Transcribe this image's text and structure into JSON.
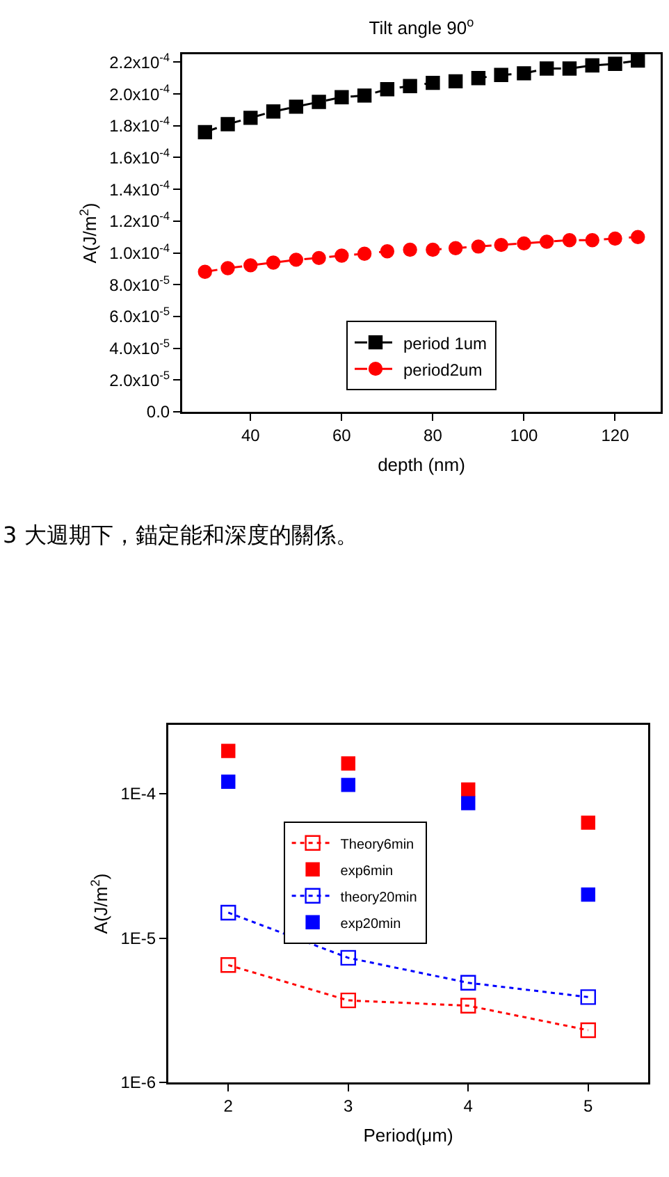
{
  "chart_data": [
    {
      "type": "line",
      "title": "Tilt angle 90$^{o}$",
      "xlabel": "depth (nm)",
      "ylabel": "A(J/m$^{2}$)",
      "x": [
        30,
        35,
        40,
        45,
        50,
        55,
        60,
        65,
        70,
        75,
        80,
        85,
        90,
        95,
        100,
        105,
        110,
        115,
        120,
        125
      ],
      "series": [
        {
          "name": "period 1um",
          "color": "#000000",
          "marker": "square",
          "values": [
            0.000176,
            0.000181,
            0.000185,
            0.000189,
            0.000192,
            0.000195,
            0.000198,
            0.000199,
            0.000203,
            0.000205,
            0.000207,
            0.000208,
            0.00021,
            0.000212,
            0.000213,
            0.000216,
            0.000216,
            0.000218,
            0.000219,
            0.000221
          ]
        },
        {
          "name": "period2um",
          "color": "#ff0000",
          "marker": "circle",
          "values": [
            8.81e-05,
            9.04e-05,
            9.22e-05,
            9.39e-05,
            9.57e-05,
            9.68e-05,
            9.83e-05,
            9.95e-05,
            0.000101,
            0.000102,
            0.000102,
            0.000103,
            0.000104,
            0.000105,
            0.000106,
            0.000107,
            0.000108,
            0.000108,
            0.000109,
            0.00011
          ]
        }
      ],
      "xlim": [
        25,
        130
      ],
      "xticks": [
        40,
        60,
        80,
        100,
        120
      ],
      "ylim": [
        0,
        0.000225
      ],
      "yticks": [
        {
          "value": 0,
          "label": "0.0"
        },
        {
          "value": 2e-05,
          "label": "2.0x10$^{-5}$"
        },
        {
          "value": 4e-05,
          "label": "4.0x10$^{-5}$"
        },
        {
          "value": 6e-05,
          "label": "6.0x10$^{-5}$"
        },
        {
          "value": 8e-05,
          "label": "8.0x10$^{-5}$"
        },
        {
          "value": 0.0001,
          "label": "1.0x10$^{-4}$"
        },
        {
          "value": 0.00012,
          "label": "1.2x10$^{-4}$"
        },
        {
          "value": 0.00014,
          "label": "1.4x10$^{-4}$"
        },
        {
          "value": 0.00016,
          "label": "1.6x10$^{-4}$"
        },
        {
          "value": 0.00018,
          "label": "1.8x10$^{-4}$"
        },
        {
          "value": 0.0002,
          "label": "2.0x10$^{-4}$"
        },
        {
          "value": 0.00022,
          "label": "2.2x10$^{-4}$"
        }
      ],
      "grid": false,
      "legend": "bottom",
      "line_style": "dashed",
      "annotations": [
        "3 大週期下，錨定能和深度的關係。"
      ]
    },
    {
      "type": "scatter",
      "xlabel": "Period(μm)",
      "ylabel": "A(J/m$^{2}$)",
      "x": [
        2,
        3,
        4,
        5
      ],
      "series": [
        {
          "name": "Theory6min",
          "type": "line",
          "color": "#ff0000",
          "marker": "square",
          "line_style": "dotted",
          "values": [
            6.5e-06,
            3.7e-06,
            3.4e-06,
            2.3e-06
          ]
        },
        {
          "name": "exp6min",
          "type": "scatter",
          "color": "#ff0000",
          "marker": "square",
          "values": [
            0.000198,
            0.000162,
            0.000107,
            6.3e-05
          ]
        },
        {
          "name": "theory20min",
          "type": "line",
          "color": "#0000ff",
          "marker": "square",
          "line_style": "dotted",
          "values": [
            1.5e-05,
            7.3e-06,
            4.9e-06,
            3.9e-06
          ]
        },
        {
          "name": "exp20min",
          "type": "scatter",
          "color": "#0000ff",
          "marker": "square",
          "values": [
            0.000121,
            0.000115,
            8.6e-05,
            2e-05
          ]
        }
      ],
      "xlim": [
        1.5,
        5.5
      ],
      "xticks": [
        2,
        3,
        4,
        5
      ],
      "log": true,
      "ylim": [
        1e-06,
        0.0003
      ],
      "yticks": [
        {
          "value": 1e-06,
          "label": "1E-6"
        },
        {
          "value": 1e-05,
          "label": "1E-5"
        },
        {
          "value": 0.0001,
          "label": "1E-4"
        }
      ],
      "grid": false,
      "legend": "left"
    }
  ]
}
